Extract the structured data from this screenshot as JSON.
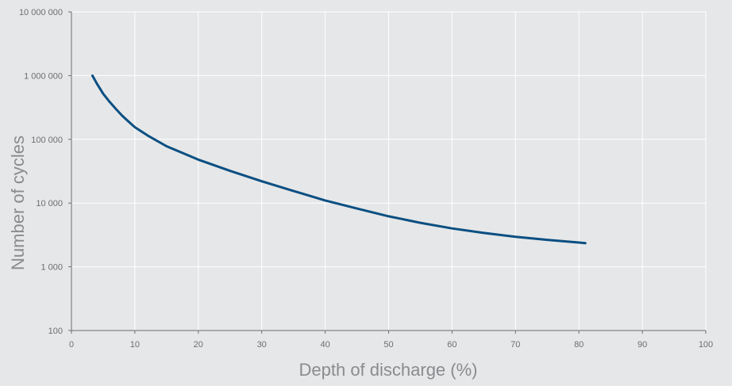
{
  "chart_data": {
    "type": "line",
    "title": "",
    "xlabel": "Depth of discharge (%)",
    "ylabel": "Number of cycles",
    "xlim": [
      0,
      100
    ],
    "ylim": [
      100,
      10000000
    ],
    "y_scale": "log",
    "grid": true,
    "x_ticks": [
      0,
      10,
      20,
      30,
      40,
      50,
      60,
      70,
      80,
      90,
      100
    ],
    "x_tick_labels": [
      "0",
      "10",
      "20",
      "30",
      "40",
      "50",
      "60",
      "70",
      "80",
      "90",
      "100"
    ],
    "y_ticks": [
      100,
      1000,
      10000,
      100000,
      1000000,
      10000000
    ],
    "y_tick_labels": [
      "100",
      "1 000",
      "10 000",
      "100 000",
      "1 000 000",
      "10 000 000"
    ],
    "colors": {
      "background": "#e6e7e8",
      "grid": "#ffffff",
      "axis": "#6d6e71",
      "series": "#0a4f82"
    },
    "series": [
      {
        "x": [
          3.3,
          4,
          5,
          6,
          7,
          8,
          9,
          10,
          12,
          15,
          20,
          25,
          30,
          35,
          40,
          45,
          50,
          55,
          60,
          65,
          70,
          75,
          80,
          81
        ],
        "y": [
          1000000,
          750000,
          520000,
          390000,
          300000,
          235000,
          190000,
          155000,
          115000,
          78000,
          48000,
          32000,
          22000,
          15500,
          11000,
          8200,
          6200,
          4900,
          4000,
          3400,
          2950,
          2650,
          2400,
          2350
        ]
      }
    ]
  }
}
